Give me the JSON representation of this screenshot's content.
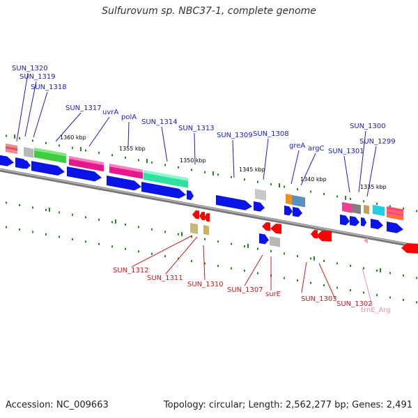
{
  "title": "Sulfurovum sp. NBC37-1, complete genome",
  "footer": {
    "accession": "Accession: NC_009663",
    "topology": "Topology: circular; Length: 2,562,277 bp; Genes: 2,491"
  },
  "colors": {
    "forward_label": "#1a1acc",
    "reverse_label": "#cc1a1a",
    "rna_label": "#f08ab8",
    "tick_green": "#228822",
    "backbone": "#888888",
    "cds_blue": "#0a14e6",
    "cds_red": "#ff0000"
  },
  "scale_ticks": [
    "1360 kbp",
    "1355 kbp",
    "1350 kbp",
    "1345 kbp",
    "1340 kbp",
    "1335 kbp"
  ],
  "forward_labels": [
    "SUN_1320",
    "SUN_1319",
    "SUN_1318",
    "SUN_1317",
    "uvrA",
    "polA",
    "SUN_1314",
    "SUN_1313",
    "SUN_1309",
    "SUN_1308",
    "greA",
    "argC",
    "SUN_1301",
    "SUN_1300",
    "SUN_1299"
  ],
  "reverse_labels": [
    "SUN_1312",
    "SUN_1311",
    "SUN_1310",
    "SUN_1307",
    "surE",
    "SUN_1303",
    "SUN_1302"
  ],
  "rna_labels": [
    "trnE_Arg"
  ]
}
